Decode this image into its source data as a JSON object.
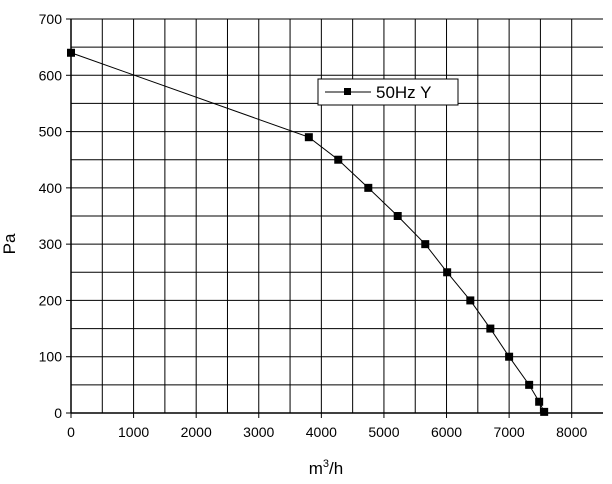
{
  "chart_data": {
    "type": "line",
    "xlabel_base": "m",
    "xlabel_sup": "3",
    "xlabel_tail": "/h",
    "ylabel": "Pa",
    "xlim": [
      0,
      8500
    ],
    "ylim": [
      0,
      700
    ],
    "xticks": [
      0,
      1000,
      2000,
      3000,
      4000,
      5000,
      6000,
      7000,
      8000
    ],
    "yticks": [
      0,
      100,
      200,
      300,
      400,
      500,
      600,
      700
    ],
    "xgrid_step": 500,
    "ygrid_step": 50,
    "grid": true,
    "legend_placement": "top-center",
    "series": [
      {
        "name": "50Hz  Y",
        "color": "#000000",
        "marker": "square",
        "x": [
          0,
          3800,
          4270,
          4750,
          5220,
          5660,
          6010,
          6380,
          6700,
          7000,
          7320,
          7480,
          7560
        ],
        "y": [
          640,
          490,
          450,
          400,
          350,
          300,
          250,
          200,
          150,
          100,
          50,
          20,
          2
        ]
      }
    ]
  }
}
